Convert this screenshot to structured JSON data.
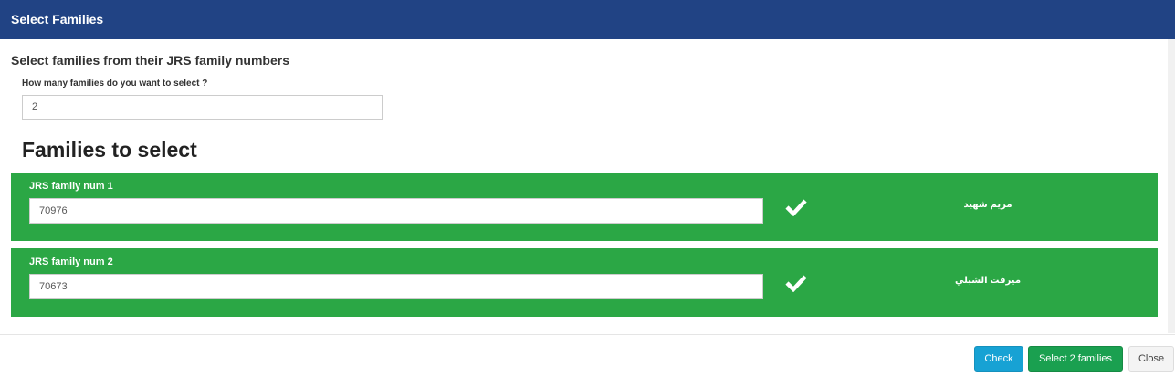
{
  "header": {
    "title": "Select Families"
  },
  "body": {
    "instruction": "Select families from their JRS family numbers",
    "count_label": "How many families do you want to select ?",
    "count_value": "2",
    "section_title": "Families to select",
    "families": [
      {
        "label": "JRS family num 1",
        "number": "70976",
        "name": "مريم شهيد"
      },
      {
        "label": "JRS family num 2",
        "number": "70673",
        "name": "ميرفت الشبلي"
      }
    ]
  },
  "footer": {
    "buttons": [
      "Check",
      "Select 2 families",
      "Close"
    ]
  }
}
